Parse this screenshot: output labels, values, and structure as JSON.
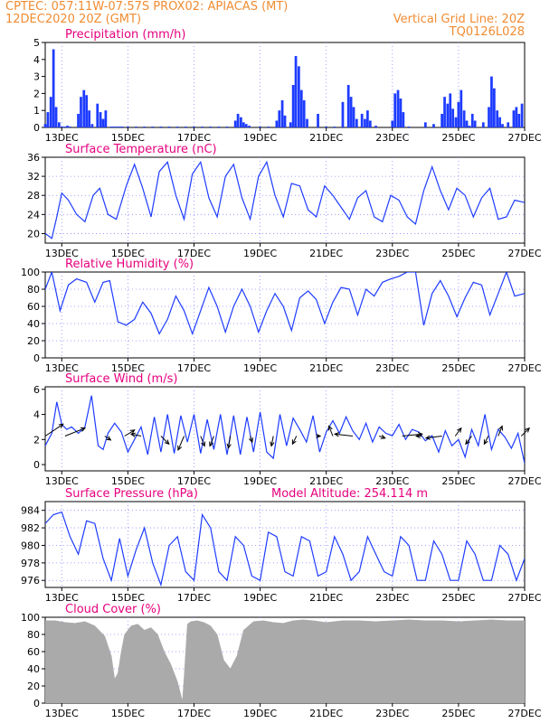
{
  "header": {
    "line1": "CPTEC:   057:11W-07:57S   PROX02: APIACAS (MT)",
    "line2_left": "12DEC2020 20Z (GMT)",
    "line2_right": "Vertical Grid Line: 20Z",
    "line3_right": "TQ0126L028"
  },
  "colors": {
    "header_text": "#f08c32",
    "panel_title": "#e6007e",
    "series_line": "#1e3cff",
    "precip_bars": "#1e3cff",
    "cloud_fill": "#aaaaaa",
    "grid": "#8888ff"
  },
  "chart_data": [
    {
      "id": "precipitation",
      "type": "bar",
      "title": "Precipitation (mm/h)",
      "xlim": [
        0,
        14.5
      ],
      "ylim": [
        0,
        5
      ],
      "yticks": [
        0,
        1,
        2,
        3,
        4,
        5
      ],
      "x_tick_positions": [
        0.5,
        2.5,
        4.5,
        6.5,
        8.5,
        10.5,
        12.5,
        14.5
      ],
      "x_tick_labels": [
        "13DEC",
        "15DEC",
        "17DEC",
        "19DEC",
        "21DEC",
        "23DEC",
        "25DEC",
        "27DEC"
      ],
      "grid": "dotted vertical at 20Z",
      "x": [
        0.0,
        0.08,
        0.17,
        0.25,
        0.33,
        0.42,
        0.5,
        0.58,
        0.67,
        0.75,
        1.0,
        1.08,
        1.17,
        1.25,
        1.33,
        1.42,
        1.58,
        1.67,
        1.75,
        1.83,
        2.0,
        2.08,
        2.17,
        2.25,
        2.33,
        2.5,
        2.75,
        3.0,
        3.25,
        3.5,
        3.75,
        4.0,
        4.25,
        4.5,
        4.75,
        5.0,
        5.25,
        5.5,
        5.75,
        5.83,
        5.92,
        6.0,
        6.08,
        6.17,
        6.5,
        6.75,
        7.0,
        7.08,
        7.17,
        7.25,
        7.42,
        7.5,
        7.58,
        7.67,
        7.75,
        7.83,
        7.92,
        8.25,
        8.5,
        8.75,
        9.0,
        9.17,
        9.25,
        9.33,
        9.42,
        9.58,
        9.67,
        9.75,
        9.83,
        10.0,
        10.5,
        10.58,
        10.67,
        10.75,
        10.83,
        11.0,
        11.5,
        11.75,
        12.0,
        12.08,
        12.17,
        12.25,
        12.33,
        12.42,
        12.5,
        12.58,
        12.67,
        12.75,
        12.83,
        12.92,
        13.0,
        13.25,
        13.42,
        13.5,
        13.58,
        13.67,
        13.75,
        13.83,
        14.0,
        14.17,
        14.25,
        14.33,
        14.42
      ],
      "values": [
        0.2,
        0.9,
        1.8,
        4.6,
        1.2,
        0.3,
        0.05,
        0.05,
        0.1,
        0.05,
        0.8,
        1.8,
        2.2,
        1.9,
        1.0,
        0.2,
        1.4,
        0.9,
        0.5,
        1.0,
        0.05,
        0.05,
        0.05,
        0.05,
        0.05,
        0.05,
        0.05,
        0.05,
        0.05,
        0.05,
        0.05,
        0.05,
        0.05,
        0.05,
        0.05,
        0.05,
        0.05,
        0.05,
        0.4,
        0.8,
        0.6,
        0.3,
        0.2,
        0.1,
        0.05,
        0.05,
        0.4,
        1.0,
        1.6,
        0.7,
        0.3,
        2.5,
        4.2,
        3.6,
        2.2,
        1.6,
        0.5,
        0.8,
        0.05,
        0.05,
        1.5,
        2.5,
        1.8,
        1.2,
        0.5,
        0.8,
        0.5,
        1.0,
        0.4,
        0.1,
        0.4,
        2.0,
        2.2,
        1.7,
        0.9,
        0.05,
        0.3,
        0.2,
        0.8,
        1.8,
        1.4,
        2.0,
        1.1,
        0.6,
        1.5,
        2.2,
        1.0,
        0.4,
        0.1,
        0.8,
        0.4,
        0.3,
        1.2,
        3.0,
        2.3,
        1.0,
        0.6,
        0.2,
        0.3,
        1.0,
        1.2,
        0.8,
        1.4
      ]
    },
    {
      "id": "surface_temperature",
      "type": "line",
      "title": "Surface Temperature (nC)",
      "xlim": [
        0,
        14.5
      ],
      "ylim": [
        18,
        36
      ],
      "yticks": [
        20,
        24,
        28,
        32,
        36
      ],
      "x_tick_positions": [
        0.5,
        2.5,
        4.5,
        6.5,
        8.5,
        10.5,
        12.5,
        14.5
      ],
      "x_tick_labels": [
        "13DEC",
        "15DEC",
        "17DEC",
        "19DEC",
        "21DEC",
        "23DEC",
        "25DEC",
        "27DEC"
      ],
      "grid": "dotted vertical at 20Z and dotted horizontal at y ticks",
      "x": [
        0.0,
        0.2,
        0.35,
        0.5,
        0.7,
        0.95,
        1.2,
        1.45,
        1.65,
        1.9,
        2.15,
        2.45,
        2.7,
        2.95,
        3.2,
        3.45,
        3.7,
        3.95,
        4.2,
        4.45,
        4.7,
        4.95,
        5.2,
        5.45,
        5.7,
        5.95,
        6.2,
        6.45,
        6.7,
        6.95,
        7.2,
        7.45,
        7.7,
        7.95,
        8.2,
        8.45,
        8.7,
        8.95,
        9.2,
        9.45,
        9.7,
        9.95,
        10.2,
        10.45,
        10.7,
        10.95,
        11.2,
        11.45,
        11.7,
        11.95,
        12.2,
        12.45,
        12.7,
        12.95,
        13.2,
        13.45,
        13.7,
        13.95,
        14.2,
        14.5
      ],
      "values": [
        20.0,
        19.0,
        23.5,
        28.5,
        27.0,
        24.0,
        22.5,
        28.0,
        29.5,
        24.0,
        23.0,
        30.0,
        34.5,
        29.5,
        23.5,
        33.0,
        35.0,
        28.0,
        23.0,
        32.5,
        35.0,
        27.5,
        23.5,
        32.0,
        34.5,
        27.5,
        23.0,
        32.0,
        35.0,
        28.0,
        23.5,
        30.5,
        30.0,
        25.0,
        23.5,
        30.0,
        28.0,
        25.5,
        23.0,
        27.5,
        29.0,
        23.5,
        22.5,
        28.0,
        27.0,
        23.5,
        22.0,
        29.0,
        34.0,
        29.0,
        25.0,
        29.5,
        28.0,
        23.5,
        27.5,
        29.5,
        23.0,
        23.5,
        27.0,
        26.5
      ]
    },
    {
      "id": "relative_humidity",
      "type": "line",
      "title": "Relative Humidity (%)",
      "xlim": [
        0,
        14.5
      ],
      "ylim": [
        0,
        100
      ],
      "yticks": [
        0,
        20,
        40,
        60,
        80,
        100
      ],
      "x_tick_positions": [
        0.5,
        2.5,
        4.5,
        6.5,
        8.5,
        10.5,
        12.5,
        14.5
      ],
      "x_tick_labels": [
        "13DEC",
        "15DEC",
        "17DEC",
        "19DEC",
        "21DEC",
        "23DEC",
        "25DEC",
        "27DEC"
      ],
      "grid": "dotted vertical at 20Z and dotted horizontal at y ticks",
      "x": [
        0.0,
        0.2,
        0.45,
        0.7,
        0.95,
        1.25,
        1.5,
        1.75,
        1.95,
        2.2,
        2.45,
        2.7,
        2.95,
        3.2,
        3.45,
        3.7,
        3.95,
        4.2,
        4.45,
        4.7,
        4.95,
        5.2,
        5.45,
        5.7,
        5.95,
        6.2,
        6.45,
        6.7,
        6.95,
        7.2,
        7.45,
        7.7,
        7.95,
        8.2,
        8.45,
        8.7,
        8.95,
        9.2,
        9.45,
        9.7,
        9.95,
        10.2,
        10.45,
        10.7,
        10.95,
        11.2,
        11.45,
        11.7,
        11.95,
        12.2,
        12.45,
        12.7,
        12.95,
        13.2,
        13.45,
        13.7,
        13.95,
        14.2,
        14.5
      ],
      "values": [
        80,
        100,
        55,
        85,
        92,
        88,
        65,
        88,
        90,
        42,
        38,
        45,
        65,
        52,
        28,
        45,
        72,
        55,
        28,
        55,
        82,
        60,
        30,
        60,
        80,
        60,
        30,
        55,
        75,
        60,
        32,
        70,
        78,
        68,
        40,
        65,
        82,
        80,
        50,
        80,
        72,
        88,
        92,
        95,
        100,
        100,
        38,
        75,
        90,
        72,
        48,
        70,
        88,
        85,
        50,
        75,
        100,
        72,
        75
      ]
    },
    {
      "id": "surface_wind",
      "type": "line",
      "title": "Surface Wind (m/s)",
      "xlim": [
        0,
        14.5
      ],
      "ylim": [
        -0.5,
        6.2
      ],
      "yticks": [
        0,
        2,
        4,
        6
      ],
      "x_tick_positions": [
        0.5,
        2.5,
        4.5,
        6.5,
        8.5,
        10.5,
        12.5,
        14.5
      ],
      "x_tick_labels": [
        "13DEC",
        "15DEC",
        "17DEC",
        "19DEC",
        "21DEC",
        "23DEC",
        "25DEC",
        "27DEC"
      ],
      "grid": "dotted vertical at 20Z",
      "x": [
        0.0,
        0.2,
        0.35,
        0.5,
        0.65,
        0.8,
        1.0,
        1.2,
        1.4,
        1.6,
        1.75,
        1.9,
        2.1,
        2.3,
        2.5,
        2.7,
        2.9,
        3.1,
        3.3,
        3.5,
        3.7,
        3.9,
        4.1,
        4.3,
        4.5,
        4.7,
        4.9,
        5.1,
        5.3,
        5.5,
        5.7,
        5.9,
        6.1,
        6.3,
        6.5,
        6.7,
        6.9,
        7.1,
        7.3,
        7.5,
        7.7,
        7.9,
        8.1,
        8.3,
        8.5,
        8.7,
        8.9,
        9.1,
        9.3,
        9.5,
        9.7,
        9.9,
        10.1,
        10.3,
        10.5,
        10.7,
        10.9,
        11.1,
        11.3,
        11.5,
        11.7,
        11.9,
        12.1,
        12.3,
        12.5,
        12.7,
        12.9,
        13.1,
        13.3,
        13.5,
        13.7,
        13.9,
        14.1,
        14.3,
        14.5
      ],
      "values": [
        1.5,
        2.5,
        5.0,
        3.2,
        2.8,
        3.0,
        2.5,
        3.0,
        5.5,
        1.5,
        1.2,
        2.5,
        3.3,
        2.6,
        1.0,
        2.0,
        3.0,
        0.8,
        3.8,
        1.0,
        4.0,
        0.9,
        3.9,
        1.8,
        4.0,
        0.9,
        3.6,
        1.2,
        4.0,
        0.8,
        3.9,
        0.8,
        3.8,
        1.0,
        4.2,
        1.0,
        0.5,
        4.0,
        1.5,
        3.7,
        2.8,
        1.8,
        3.9,
        1.0,
        2.6,
        3.5,
        2.5,
        3.8,
        2.7,
        2.0,
        3.3,
        1.8,
        3.0,
        2.5,
        2.3,
        3.2,
        2.0,
        2.8,
        2.6,
        1.9,
        2.3,
        1.0,
        2.7,
        1.5,
        2.0,
        0.6,
        2.8,
        1.5,
        4.0,
        1.2,
        2.8,
        2.2,
        1.3,
        2.5,
        0.1
      ],
      "vectors": {
        "x": [
          0.0,
          0.6,
          1.8,
          2.4,
          2.9,
          3.5,
          4.2,
          4.7,
          5.1,
          5.6,
          6.2,
          6.9,
          7.6,
          8.2,
          8.7,
          9.3,
          10.1,
          10.8,
          11.4,
          12.0,
          12.4,
          12.9,
          13.4,
          13.7,
          14.4
        ],
        "u": [
          0.9,
          1.0,
          0.3,
          0.5,
          -0.5,
          0.4,
          -0.3,
          0.2,
          -0.2,
          -0.1,
          0.1,
          -0.1,
          -0.2,
          0.2,
          -0.2,
          -0.9,
          0.3,
          1.0,
          -0.3,
          -0.8,
          0.3,
          -0.3,
          -0.2,
          0.2,
          0.4
        ],
        "v": [
          0.6,
          0.4,
          -0.2,
          0.3,
          0.1,
          -0.4,
          -0.7,
          -0.5,
          -0.5,
          -0.6,
          -0.3,
          -0.5,
          -0.4,
          0.0,
          0.5,
          0.1,
          -0.1,
          0.1,
          0.0,
          -0.1,
          0.4,
          -0.4,
          -0.4,
          0.5,
          0.4
        ]
      }
    },
    {
      "id": "surface_pressure",
      "type": "line",
      "title": "Surface Pressure (hPa)",
      "annotation": "Model Altitude: 254.114 m",
      "xlim": [
        0,
        14.5
      ],
      "ylim": [
        975.2,
        985
      ],
      "yticks": [
        976,
        978,
        980,
        982,
        984
      ],
      "x_tick_positions": [
        0.5,
        2.5,
        4.5,
        6.5,
        8.5,
        10.5,
        12.5,
        14.5
      ],
      "x_tick_labels": [
        "13DEC",
        "15DEC",
        "17DEC",
        "19DEC",
        "21DEC",
        "23DEC",
        "25DEC",
        "27DEC"
      ],
      "grid": "dotted vertical at 20Z and dotted horizontal at y ticks",
      "x": [
        0.0,
        0.25,
        0.5,
        0.75,
        1.0,
        1.25,
        1.5,
        1.75,
        2.0,
        2.25,
        2.5,
        2.75,
        3.0,
        3.25,
        3.5,
        3.75,
        4.0,
        4.25,
        4.5,
        4.75,
        5.0,
        5.25,
        5.5,
        5.75,
        6.0,
        6.25,
        6.5,
        6.75,
        7.0,
        7.25,
        7.5,
        7.75,
        8.0,
        8.25,
        8.5,
        8.75,
        9.0,
        9.25,
        9.5,
        9.75,
        10.0,
        10.25,
        10.5,
        10.75,
        11.0,
        11.25,
        11.5,
        11.75,
        12.0,
        12.25,
        12.5,
        12.75,
        13.0,
        13.25,
        13.5,
        13.75,
        14.0,
        14.25,
        14.5
      ],
      "values": [
        982.5,
        983.5,
        983.8,
        981.0,
        979.0,
        982.8,
        982.5,
        978.5,
        976.0,
        980.8,
        976.5,
        979.5,
        982.0,
        978.0,
        975.5,
        980.0,
        981.0,
        977.0,
        976.0,
        983.5,
        982.0,
        977.0,
        976.0,
        981.0,
        980.0,
        976.5,
        976.0,
        981.5,
        981.0,
        977.0,
        976.5,
        981.0,
        980.5,
        976.5,
        977.0,
        981.0,
        979.0,
        976.0,
        977.0,
        981.0,
        979.0,
        977.0,
        976.5,
        981.0,
        980.0,
        976.0,
        976.0,
        980.5,
        979.0,
        976.0,
        976.0,
        980.5,
        979.0,
        976.0,
        976.0,
        980.0,
        979.0,
        976.0,
        978.5
      ]
    },
    {
      "id": "cloud_cover",
      "type": "area",
      "title": "Cloud Cover (%)",
      "xlim": [
        0,
        14.5
      ],
      "ylim": [
        0,
        100
      ],
      "yticks": [
        0,
        20,
        40,
        60,
        80,
        100
      ],
      "x_tick_positions": [
        0.5,
        2.5,
        4.5,
        6.5,
        8.5,
        10.5,
        12.5,
        14.5
      ],
      "x_tick_labels": [
        "13DEC",
        "15DEC",
        "17DEC",
        "19DEC",
        "21DEC",
        "23DEC",
        "25DEC",
        "27DEC"
      ],
      "grid": "dotted vertical at 20Z and dotted horizontal at y ticks",
      "x": [
        0.0,
        0.3,
        0.6,
        0.9,
        1.2,
        1.5,
        1.8,
        2.0,
        2.1,
        2.2,
        2.3,
        2.4,
        2.6,
        2.8,
        3.0,
        3.2,
        3.4,
        3.6,
        3.8,
        4.0,
        4.1,
        4.15,
        4.2,
        4.3,
        4.4,
        4.6,
        4.8,
        5.0,
        5.2,
        5.4,
        5.6,
        5.8,
        6.0,
        6.3,
        6.6,
        6.9,
        7.2,
        7.5,
        7.8,
        8.1,
        8.5,
        9.0,
        9.5,
        10.0,
        10.5,
        11.0,
        11.5,
        12.0,
        12.5,
        13.0,
        13.5,
        14.0,
        14.5
      ],
      "values": [
        96,
        96,
        94,
        93,
        95,
        90,
        78,
        55,
        28,
        35,
        60,
        80,
        90,
        92,
        85,
        88,
        80,
        60,
        45,
        25,
        10,
        2,
        30,
        92,
        95,
        96,
        94,
        90,
        80,
        50,
        40,
        55,
        85,
        95,
        96,
        94,
        93,
        96,
        97,
        96,
        94,
        96,
        96,
        95,
        96,
        97,
        96,
        96,
        95,
        96,
        97,
        96,
        96
      ]
    }
  ]
}
